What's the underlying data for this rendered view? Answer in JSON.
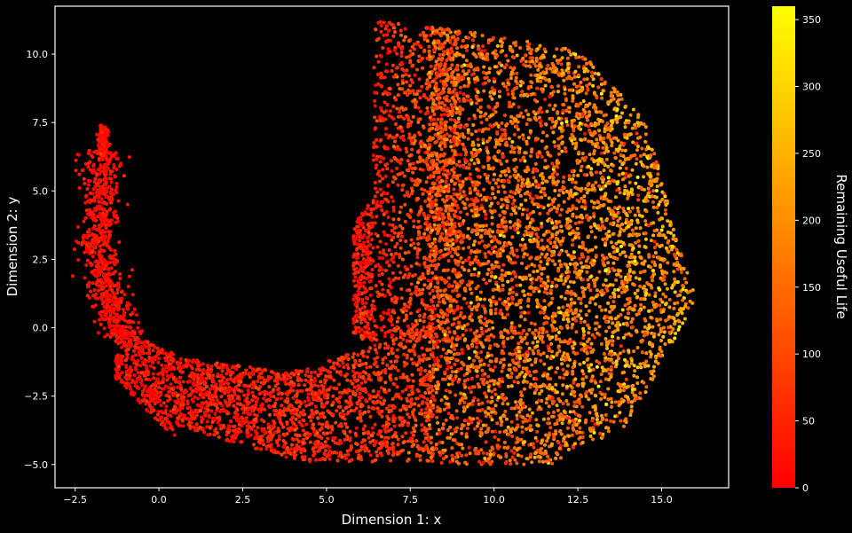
{
  "chart_data": {
    "type": "scatter",
    "title": "",
    "xlabel": "Dimension 1: x",
    "ylabel": "Dimension 2: y",
    "xlim": [
      -3.1,
      17.0
    ],
    "ylim": [
      -5.85,
      11.75
    ],
    "xticks": [
      -2.5,
      0.0,
      2.5,
      5.0,
      7.5,
      10.0,
      12.5,
      15.0
    ],
    "yticks": [
      -5.0,
      -2.5,
      0.0,
      2.5,
      5.0,
      7.5,
      10.0
    ],
    "xtick_labels": [
      "−2.5",
      "0.0",
      "2.5",
      "5.0",
      "7.5",
      "10.0",
      "12.5",
      "15.0"
    ],
    "ytick_labels": [
      "−5.0",
      "−2.5",
      "0.0",
      "2.5",
      "5.0",
      "7.5",
      "10.0"
    ],
    "grid": false,
    "point_count": 9000,
    "colorbar": {
      "label": "Remaining Useful Life",
      "range": [
        0,
        360
      ],
      "ticks": [
        0,
        50,
        100,
        150,
        200,
        250,
        300,
        350
      ],
      "tick_labels": [
        "0",
        "50",
        "100",
        "150",
        "200",
        "250",
        "300",
        "350"
      ],
      "colormap": "autumn",
      "color_low": "#ff0000",
      "color_high": "#ffff00"
    },
    "regions": [
      {
        "name": "tail",
        "x": [
          -2.2,
          -1.1
        ],
        "y": [
          -0.5,
          7.4
        ],
        "rul_range": [
          0,
          60
        ]
      },
      {
        "name": "arc",
        "x": [
          -1.3,
          8.5
        ],
        "y": [
          -5.0,
          0.2
        ],
        "rul_range": [
          10,
          140
        ]
      },
      {
        "name": "upper-left lobe",
        "x": [
          5.8,
          9.0
        ],
        "y": [
          0.0,
          11.4
        ],
        "rul_range": [
          0,
          120
        ]
      },
      {
        "name": "main cluster",
        "x": [
          8.0,
          16.0
        ],
        "y": [
          -5.0,
          11.3
        ],
        "rul_range": [
          80,
          360
        ]
      }
    ],
    "background": "#000000",
    "axes_color": "#ffffff"
  }
}
